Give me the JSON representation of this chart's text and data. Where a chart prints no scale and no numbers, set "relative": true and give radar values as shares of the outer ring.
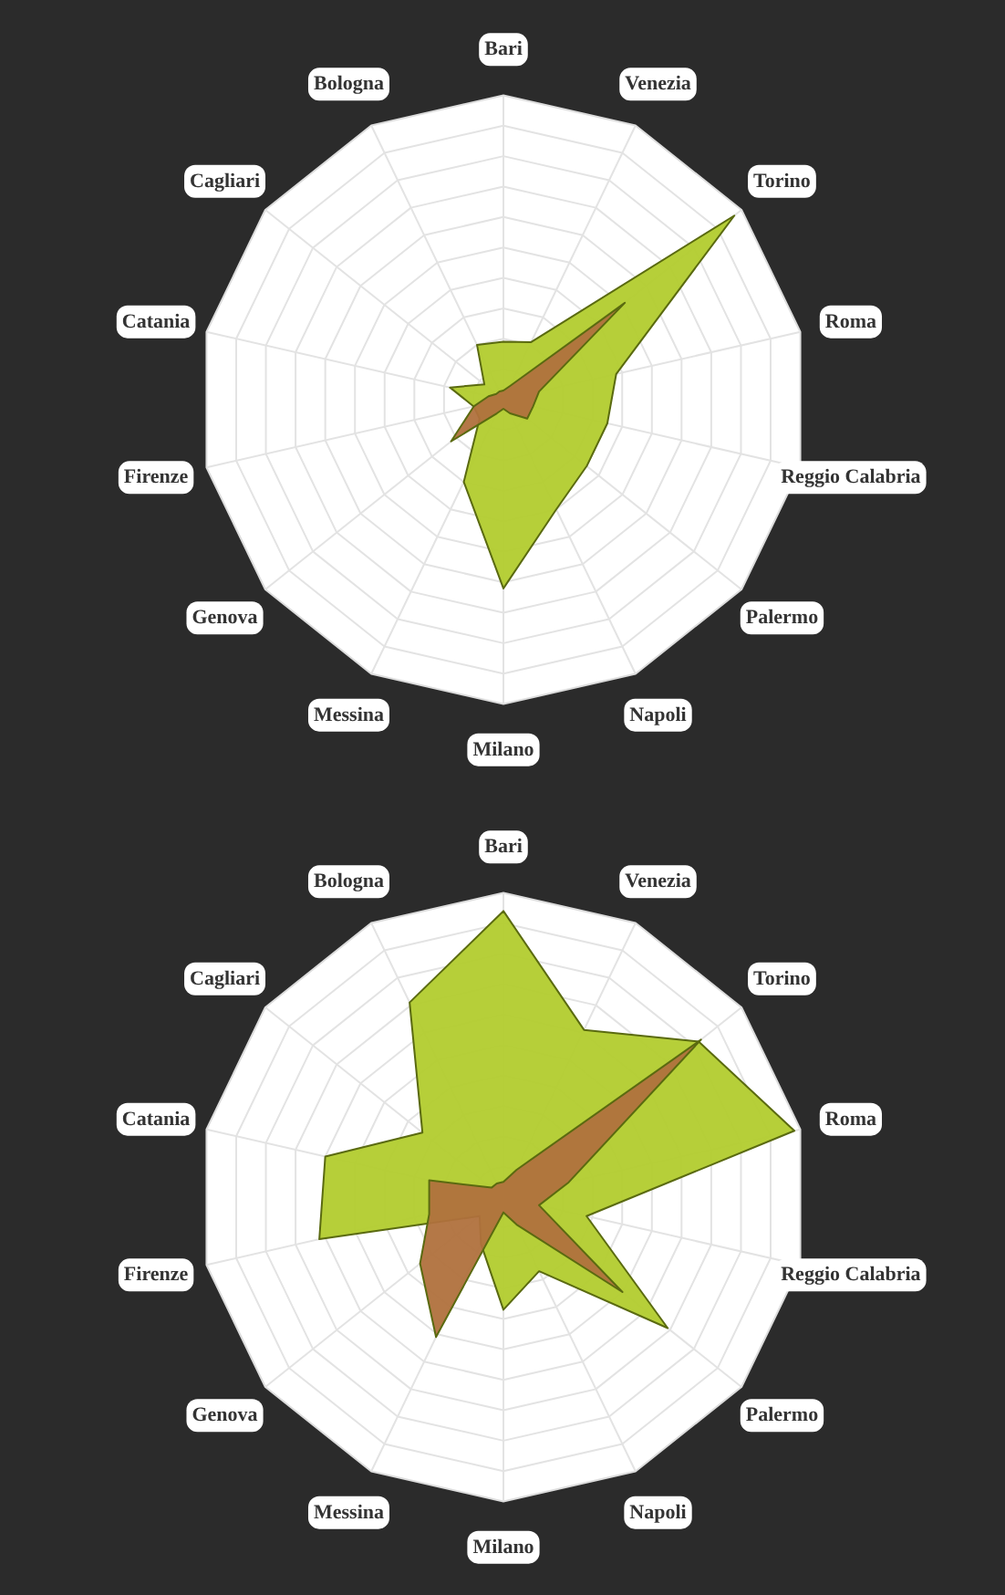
{
  "chart_data": [
    {
      "type": "radar",
      "relative": true,
      "grid": true,
      "categories": [
        "Bari",
        "Venezia",
        "Torino",
        "Roma",
        "Reggio Calabria",
        "Palermo",
        "Napoli",
        "Milano",
        "Messina",
        "Genova",
        "Firenze",
        "Catania",
        "Cagliari",
        "Bologna"
      ],
      "series": [
        {
          "color": "#b2cc2e",
          "values": [
            0.19,
            0.21,
            0.97,
            0.38,
            0.35,
            0.35,
            0.4,
            0.62,
            0.3,
            0.1,
            0.1,
            0.18,
            0.08,
            0.2
          ]
        },
        {
          "color": "#b0713d",
          "values": [
            0.03,
            0.05,
            0.51,
            0.12,
            0.1,
            0.1,
            0.05,
            0.03,
            0.05,
            0.22,
            0.1,
            0.05,
            0.03,
            0.03
          ]
        }
      ]
    },
    {
      "type": "radar",
      "relative": true,
      "grid": true,
      "categories": [
        "Bari",
        "Venezia",
        "Torino",
        "Roma",
        "Reggio Calabria",
        "Palermo",
        "Napoli",
        "Milano",
        "Messina",
        "Genova",
        "Firenze",
        "Catania",
        "Cagliari",
        "Bologna"
      ],
      "series": [
        {
          "color": "#b2cc2e",
          "values": [
            0.94,
            0.61,
            0.82,
            0.98,
            0.28,
            0.69,
            0.27,
            0.37,
            0.17,
            0.1,
            0.62,
            0.6,
            0.34,
            0.71
          ]
        },
        {
          "color": "#b0713d",
          "values": [
            0.05,
            0.1,
            0.83,
            0.22,
            0.12,
            0.5,
            0.1,
            0.05,
            0.51,
            0.35,
            0.25,
            0.25,
            0.05,
            0.05
          ]
        }
      ]
    }
  ]
}
